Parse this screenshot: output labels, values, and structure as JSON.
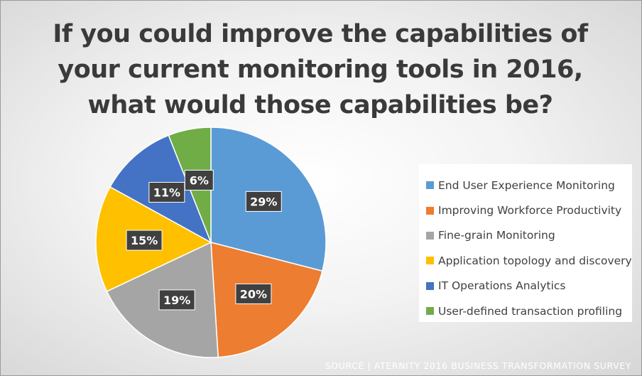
{
  "chart_data": {
    "type": "pie",
    "title": "If you could improve the capabilities of your current monitoring tools in 2016, what would those capabilities be?",
    "legend_position": "right",
    "slices": [
      {
        "label": "End User Experience Monitoring",
        "value": 29,
        "display": "29%",
        "color": "#5B9BD5"
      },
      {
        "label": "Improving Workforce Productivity",
        "value": 20,
        "display": "20%",
        "color": "#ED7D31"
      },
      {
        "label": "Fine-grain Monitoring",
        "value": 19,
        "display": "19%",
        "color": "#A5A5A5"
      },
      {
        "label": "Application topology and discovery",
        "value": 15,
        "display": "15%",
        "color": "#FFC000"
      },
      {
        "label": "IT Operations Analytics",
        "value": 11,
        "display": "11%",
        "color": "#4472C4"
      },
      {
        "label": "User-defined transaction profiling",
        "value": 6,
        "display": "6%",
        "color": "#70AD47"
      }
    ],
    "source": "SOURCE | ATERNITY 2016 BUSINESS TRANSFORMATION SURVEY"
  }
}
